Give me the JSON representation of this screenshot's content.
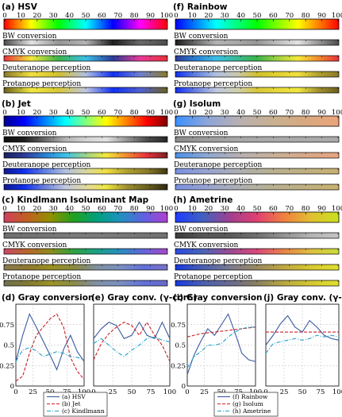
{
  "panels": [
    {
      "id": "a",
      "title": "(a) HSV",
      "bar_colors": [
        "#ff0000",
        "#ffff00",
        "#00ff00",
        "#00ffff",
        "#0000ff",
        "#ff00ff",
        "#ff0000"
      ],
      "bw_colors": [
        "#4c4c4c",
        "#e2e2e2",
        "#959595",
        "#b3b3b3",
        "#1d1d1d",
        "#696969",
        "#4c4c4c"
      ],
      "cmyk_colors": [
        "#e8303a",
        "#f2e83a",
        "#3bb34a",
        "#3bbfe8",
        "#2b3a96",
        "#e83a96",
        "#e8303a"
      ],
      "deut_colors": [
        "#8a7a2a",
        "#f0e040",
        "#d0c030",
        "#b0c0e0",
        "#1030f0",
        "#7080d0",
        "#8a7a2a"
      ],
      "prot_colors": [
        "#6a6020",
        "#f0e840",
        "#d8c838",
        "#c0c8e0",
        "#1030f0",
        "#5060d0",
        "#6a6020"
      ]
    },
    {
      "id": "b",
      "title": "(b) Jet",
      "bar_colors": [
        "#00008f",
        "#0000ff",
        "#0080ff",
        "#00ffff",
        "#80ff80",
        "#ffff00",
        "#ff8000",
        "#ff0000",
        "#800000"
      ],
      "bw_colors": [
        "#0f0f0f",
        "#1d1d1d",
        "#6a6a6a",
        "#b3b3b3",
        "#d4d4d4",
        "#e2e2e2",
        "#969696",
        "#4c4c4c",
        "#262626"
      ],
      "cmyk_colors": [
        "#1a2060",
        "#2b3a96",
        "#2b7fd0",
        "#3bbfe8",
        "#9bd38a",
        "#f2e83a",
        "#f08a30",
        "#e8303a",
        "#7a2020"
      ],
      "deut_colors": [
        "#101890",
        "#1030f0",
        "#6080e0",
        "#b0c0e0",
        "#d8d8a0",
        "#f0e040",
        "#b0a030",
        "#8a7a2a",
        "#403810"
      ],
      "prot_colors": [
        "#101890",
        "#1030f0",
        "#6a80e0",
        "#c0c8e0",
        "#e0d8a0",
        "#f0e840",
        "#a09030",
        "#6a6020",
        "#302810"
      ]
    },
    {
      "id": "c",
      "title": "(c) Kindlmann Isoluminant Map",
      "bar_colors": [
        "#d04060",
        "#c06020",
        "#909000",
        "#20a020",
        "#00a080",
        "#2090c0",
        "#6060e0",
        "#b040d0"
      ],
      "bw_colors": [
        "#6e6e6e",
        "#727272",
        "#767676",
        "#7a7a7a",
        "#7a7a7a",
        "#787878",
        "#747474",
        "#707070"
      ],
      "cmyk_colors": [
        "#c84a66",
        "#b8662a",
        "#8c8c20",
        "#2ea040",
        "#1aa088",
        "#2a8cc0",
        "#6464d8",
        "#a848c8"
      ],
      "deut_colors": [
        "#8a7a50",
        "#907830",
        "#9a9020",
        "#8a8a40",
        "#8090a0",
        "#7a90c0",
        "#6070d8",
        "#7a70c8"
      ],
      "prot_colors": [
        "#707050",
        "#807830",
        "#9a9428",
        "#8a8a48",
        "#8090a8",
        "#7a90c0",
        "#6070d8",
        "#6a68c8"
      ]
    },
    {
      "id": "f",
      "title": "(f) Rainbow",
      "bar_colors": [
        "#0000ff",
        "#0080ff",
        "#00ffff",
        "#00ff80",
        "#00ff00",
        "#80ff00",
        "#ffff00",
        "#ff8000",
        "#ff0000"
      ],
      "bw_colors": [
        "#1d1d1d",
        "#6a6a6a",
        "#b3b3b3",
        "#a8a8a8",
        "#959595",
        "#bcbcbc",
        "#e2e2e2",
        "#969696",
        "#4c4c4c"
      ],
      "cmyk_colors": [
        "#2b3a96",
        "#2b7fd0",
        "#3bbfe8",
        "#3bb894",
        "#3bb34a",
        "#a0d040",
        "#f2e83a",
        "#f08a30",
        "#e8303a"
      ],
      "deut_colors": [
        "#1030f0",
        "#6080e0",
        "#b0c0e0",
        "#c8c8b0",
        "#d0c030",
        "#e0d030",
        "#f0e040",
        "#b0a030",
        "#8a7a2a"
      ],
      "prot_colors": [
        "#1030f0",
        "#6a80e0",
        "#c0c8e0",
        "#d0d0b0",
        "#d8c838",
        "#e8d838",
        "#f0e840",
        "#a09030",
        "#6a6020"
      ]
    },
    {
      "id": "g",
      "title": "(g) Isolum",
      "bar_colors": [
        "#3a90fe",
        "#8fa6d8",
        "#b9b0b0",
        "#c8b090",
        "#d8a880",
        "#eca47a"
      ],
      "bw_colors": [
        "#8a8a8a",
        "#9e9e9e",
        "#a8a8a8",
        "#aaaaaa",
        "#aaaaaa",
        "#aaaaaa"
      ],
      "cmyk_colors": [
        "#4a90e8",
        "#90a8d0",
        "#b8b0b0",
        "#c8b098",
        "#d8a888",
        "#e8a480"
      ],
      "deut_colors": [
        "#7a90e0",
        "#98a4d0",
        "#b0b0b0",
        "#b8b090",
        "#c0b080",
        "#c8b070"
      ],
      "prot_colors": [
        "#7a90e0",
        "#98a4d0",
        "#b0b0b0",
        "#b8b090",
        "#c0b080",
        "#c8b070"
      ]
    },
    {
      "id": "h",
      "title": "(h) Ametrine",
      "bar_colors": [
        "#1e3cff",
        "#4060c0",
        "#a04090",
        "#e04070",
        "#f08040",
        "#e0c030",
        "#c8e020"
      ],
      "bw_colors": [
        "#3c3c3c",
        "#565656",
        "#5a5a5a",
        "#707070",
        "#929292",
        "#b4b4b4",
        "#c4c4c4"
      ],
      "cmyk_colors": [
        "#2a4ae0",
        "#4a64b8",
        "#9a4a90",
        "#d8487a",
        "#e88448",
        "#dcc040",
        "#c8dc3a"
      ],
      "deut_colors": [
        "#1838e0",
        "#4a60b0",
        "#7a7a90",
        "#9a8a60",
        "#c0a840",
        "#d8c830",
        "#e0e030"
      ],
      "prot_colors": [
        "#1838e0",
        "#4a60b0",
        "#6a6a90",
        "#8a8060",
        "#b8a840",
        "#d4c830",
        "#e0e030"
      ]
    }
  ],
  "labels": {
    "bw": "BW conversion",
    "cmyk": "CMYK conversion",
    "deut": "Deuteranope perception",
    "prot": "Protanope perception"
  },
  "scale_ticks": [
    "0",
    "10",
    "20",
    "30",
    "40",
    "50",
    "60",
    "70",
    "80",
    "90",
    "100"
  ],
  "plot_titles": {
    "d": "(d) Gray conversion",
    "e": "(e) Gray conv. (γ-corr.)",
    "i": "(i) Gray conversion",
    "j": "(j) Gray conv. (γ-corr.)"
  },
  "chart_data": [
    {
      "id": "d",
      "type": "line",
      "title": "(d) Gray conversion",
      "x": [
        0,
        10,
        20,
        30,
        40,
        50,
        60,
        70,
        80,
        90,
        100
      ],
      "xlim": [
        0,
        100
      ],
      "ylim": [
        0,
        1
      ],
      "yticks": [
        "0",
        "0.25",
        "0.5",
        "0.75"
      ],
      "xticks": [
        "0",
        "25",
        "50",
        "75",
        "100"
      ],
      "series": [
        {
          "name": "(a) HSV",
          "color": "#3a5aa0",
          "dash": "",
          "values": [
            0.3,
            0.62,
            0.88,
            0.72,
            0.55,
            0.38,
            0.2,
            0.45,
            0.62,
            0.42,
            0.3
          ]
        },
        {
          "name": "(b) Jet",
          "color": "#c8202a",
          "dash": "4,2",
          "values": [
            0.06,
            0.12,
            0.4,
            0.62,
            0.72,
            0.82,
            0.88,
            0.72,
            0.35,
            0.18,
            0.08
          ]
        },
        {
          "name": "(c) Kindlmann",
          "color": "#20a0c8",
          "dash": "5,2,1,2",
          "values": [
            0.3,
            0.44,
            0.47,
            0.43,
            0.36,
            0.39,
            0.42,
            0.4,
            0.36,
            0.35,
            0.32
          ]
        }
      ]
    },
    {
      "id": "e",
      "type": "line",
      "title": "(e) Gray conv. (γ-corr.)",
      "x": [
        0,
        10,
        20,
        30,
        40,
        50,
        60,
        70,
        80,
        90,
        100
      ],
      "xlim": [
        0,
        100
      ],
      "ylim": [
        0,
        1
      ],
      "yticks": [],
      "xticks": [
        "0",
        "25",
        "50",
        "75",
        "100"
      ],
      "series": [
        {
          "name": "(a) HSV",
          "color": "#3a5aa0",
          "dash": "",
          "values": [
            0.58,
            0.7,
            0.78,
            0.74,
            0.58,
            0.62,
            0.78,
            0.62,
            0.58,
            0.78,
            0.58
          ]
        },
        {
          "name": "(b) Jet",
          "color": "#c8202a",
          "dash": "4,2",
          "values": [
            0.32,
            0.52,
            0.64,
            0.72,
            0.78,
            0.74,
            0.62,
            0.78,
            0.62,
            0.5,
            0.3
          ]
        },
        {
          "name": "(c) Kindlmann",
          "color": "#20a0c8",
          "dash": "5,2,1,2",
          "values": [
            0.52,
            0.58,
            0.5,
            0.42,
            0.36,
            0.44,
            0.5,
            0.58,
            0.6,
            0.56,
            0.54
          ]
        }
      ]
    },
    {
      "id": "i",
      "type": "line",
      "title": "(i) Gray conversion",
      "x": [
        0,
        10,
        20,
        30,
        40,
        50,
        60,
        70,
        80,
        90,
        100
      ],
      "xlim": [
        0,
        100
      ],
      "ylim": [
        0,
        1
      ],
      "yticks": [
        "0",
        "0.25",
        "0.5",
        "0.75"
      ],
      "xticks": [
        "0",
        "25",
        "50",
        "75",
        "100"
      ],
      "series": [
        {
          "name": "(f) Rainbow",
          "color": "#3a5aa0",
          "dash": "",
          "values": [
            0.14,
            0.38,
            0.55,
            0.7,
            0.62,
            0.75,
            0.88,
            0.65,
            0.4,
            0.32,
            0.3
          ]
        },
        {
          "name": "(g) Isolum",
          "color": "#c8202a",
          "dash": "4,2",
          "values": [
            0.6,
            0.62,
            0.64,
            0.65,
            0.66,
            0.67,
            0.68,
            0.69,
            0.7,
            0.71,
            0.72
          ]
        },
        {
          "name": "(h) Ametrine",
          "color": "#20a0c8",
          "dash": "5,2,1,2",
          "values": [
            0.22,
            0.36,
            0.42,
            0.5,
            0.5,
            0.52,
            0.6,
            0.66,
            0.7,
            0.72,
            0.72
          ]
        }
      ]
    },
    {
      "id": "j",
      "type": "line",
      "title": "(j) Gray conv. (γ-corr.)",
      "x": [
        0,
        10,
        20,
        30,
        40,
        50,
        60,
        70,
        80,
        90,
        100
      ],
      "xlim": [
        0,
        100
      ],
      "ylim": [
        0,
        1
      ],
      "yticks": [],
      "xticks": [
        "0",
        "25",
        "50",
        "75",
        "100"
      ],
      "series": [
        {
          "name": "(f) Rainbow",
          "color": "#3a5aa0",
          "dash": "",
          "values": [
            0.5,
            0.62,
            0.76,
            0.86,
            0.72,
            0.66,
            0.8,
            0.72,
            0.62,
            0.58,
            0.56
          ]
        },
        {
          "name": "(g) Isolum",
          "color": "#c8202a",
          "dash": "4,2",
          "values": [
            0.66,
            0.66,
            0.66,
            0.66,
            0.66,
            0.66,
            0.66,
            0.66,
            0.66,
            0.66,
            0.66
          ]
        },
        {
          "name": "(h) Ametrine",
          "color": "#20a0c8",
          "dash": "5,2,1,2",
          "values": [
            0.4,
            0.52,
            0.54,
            0.56,
            0.58,
            0.56,
            0.58,
            0.62,
            0.6,
            0.62,
            0.6
          ]
        }
      ]
    }
  ]
}
